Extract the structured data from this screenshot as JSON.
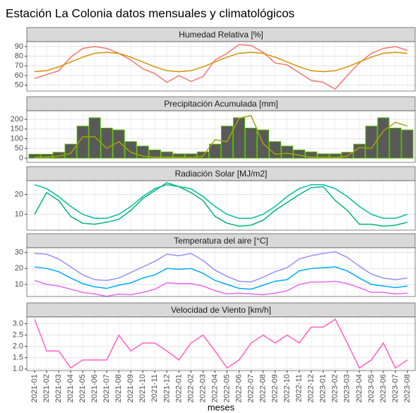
{
  "chart_data": {
    "type": "facet",
    "title": "Estación La Colonia datos mensuales y climatológicos",
    "x_label": "meses",
    "categories": [
      "2021-01",
      "2021-02",
      "2021-03",
      "2021-04",
      "2021-05",
      "2021-06",
      "2021-07",
      "2021-08",
      "2021-09",
      "2021-10",
      "2021-11",
      "2021-12",
      "2022-01",
      "2022-02",
      "2022-03",
      "2022-04",
      "2022-05",
      "2022-06",
      "2022-07",
      "2022-08",
      "2022-09",
      "2022-10",
      "2022-11",
      "2022-12",
      "2023-01",
      "2023-02",
      "2023-03",
      "2023-04",
      "2023-05",
      "2023-06",
      "2023-07",
      "2023-08"
    ],
    "grid": true,
    "panels": [
      {
        "type": "line",
        "title": "Humedad Relativa [%]",
        "ylim": [
          44,
          95
        ],
        "yticks": [
          50,
          60,
          70,
          80,
          90
        ],
        "series": [
          {
            "color": "#f8766d",
            "values": [
              57,
              61,
              65,
              79,
              88,
              90,
              88,
              83,
              76,
              67,
              62,
              53,
              60,
              54,
              59,
              76,
              83,
              92,
              91,
              84,
              73,
              71,
              63,
              55,
              53,
              46,
              60,
              73,
              83,
              88,
              90,
              86
            ]
          },
          {
            "color": "#d39200",
            "values": [
              64,
              65,
              69,
              74,
              79,
              83,
              84,
              83,
              79,
              74,
              69,
              65,
              64,
              65,
              69,
              74,
              79,
              83,
              84,
              83,
              79,
              74,
              69,
              65,
              64,
              65,
              69,
              74,
              79,
              83,
              84,
              83
            ]
          }
        ]
      },
      {
        "type": "bar-line",
        "title": "Precipitación Acumulada [mm]",
        "ylim": [
          -22,
          244
        ],
        "yticks": [
          0,
          50,
          100,
          150,
          200
        ],
        "series": [
          {
            "type": "bar",
            "color": "#595959",
            "edge": "#53b400",
            "values": [
              20,
              20,
              30,
              72,
              165,
              208,
              155,
              145,
              85,
              62,
              42,
              32,
              22,
              22,
              32,
              72,
              165,
              208,
              155,
              145,
              85,
              62,
              42,
              32,
              22,
              22,
              30,
              72,
              165,
              208,
              155,
              145
            ]
          },
          {
            "type": "line",
            "color": "#a3a500",
            "values": [
              5,
              5,
              10,
              25,
              110,
              110,
              50,
              85,
              30,
              10,
              5,
              5,
              5,
              3,
              10,
              95,
              85,
              205,
              220,
              75,
              20,
              25,
              15,
              5,
              5,
              3,
              10,
              55,
              50,
              140,
              185,
              165
            ]
          }
        ]
      },
      {
        "type": "line",
        "title": "Radiación Solar [MJ/m2]",
        "ylim": [
          2,
          27
        ],
        "yticks": [
          10,
          20
        ],
        "series": [
          {
            "color": "#00bfa0",
            "values": [
              25,
              23,
              19,
              14,
              10,
              8,
              8,
              10,
              14,
              19,
              23,
              25,
              24,
              23,
              19,
              14,
              10,
              8,
              8,
              10,
              14,
              19,
              23,
              25,
              25,
              23,
              19,
              14,
              10,
              8,
              8,
              10
            ]
          },
          {
            "color": "#00b37a",
            "values": [
              10,
              21,
              17,
              9,
              5.5,
              5,
              6,
              7.5,
              12,
              18,
              22,
              26,
              24,
              21,
              17,
              9,
              5.5,
              4,
              4.5,
              7,
              12,
              16,
              20,
              23.5,
              24,
              17,
              12,
              5,
              5,
              4,
              4.5,
              6
            ]
          }
        ]
      },
      {
        "type": "line",
        "title": "Temperatura del aire [°C]",
        "ylim": [
          2.4,
          33
        ],
        "yticks": [
          10,
          20,
          30
        ],
        "series": [
          {
            "color": "#9590ff",
            "values": [
              29.5,
              29,
              26,
              21,
              16,
              13,
              12.5,
              14,
              17.5,
              21,
              24.5,
              29,
              28,
              29.5,
              25,
              19,
              15,
              12,
              11.5,
              14.5,
              18,
              20.5,
              26,
              28,
              29.5,
              30.5,
              27,
              21.5,
              16.5,
              14,
              13,
              14
            ]
          },
          {
            "color": "#00a9ff",
            "values": [
              21,
              20,
              18,
              14,
              10.5,
              8.5,
              7.5,
              9.5,
              11,
              14,
              16,
              20,
              19.5,
              20,
              17,
              12.5,
              10,
              7.5,
              7,
              9.5,
              12,
              13,
              18.5,
              20,
              20.5,
              21,
              18.5,
              14,
              10,
              9,
              8,
              9
            ]
          },
          {
            "color": "#e76bf3",
            "values": [
              12.5,
              10,
              9,
              7,
              5,
              4,
              2.5,
              4,
              3.5,
              5,
              7,
              11,
              10.5,
              10.5,
              9,
              6,
              4,
              4.5,
              4,
              3.5,
              4.5,
              6,
              10,
              11.5,
              11.5,
              12,
              10.5,
              8,
              5,
              5,
              4,
              4.5
            ]
          }
        ]
      },
      {
        "type": "line",
        "title": "Velocidad de Viento [km/h]",
        "ylim": [
          0.93,
          3.3
        ],
        "yticks": [
          {
            "value": 1,
            "label": "1.0"
          },
          {
            "value": 1.5,
            "label": "1.5"
          },
          {
            "value": 2,
            "label": "2.0"
          },
          {
            "value": 2.5,
            "label": "2.5"
          },
          {
            "value": 3,
            "label": "3.0"
          }
        ],
        "series": [
          {
            "color": "#ff61c3",
            "values": [
              3.2,
              1.8,
              1.8,
              1.05,
              1.4,
              1.4,
              1.4,
              2.5,
              1.8,
              2.15,
              2.15,
              1.8,
              1.4,
              2.15,
              2.5,
              1.8,
              1.05,
              1.4,
              2.15,
              2.5,
              2.15,
              2.5,
              2.15,
              2.85,
              2.85,
              3.2,
              2.15,
              1.05,
              1.4,
              2.15,
              1.05,
              1.4
            ]
          }
        ]
      }
    ]
  }
}
